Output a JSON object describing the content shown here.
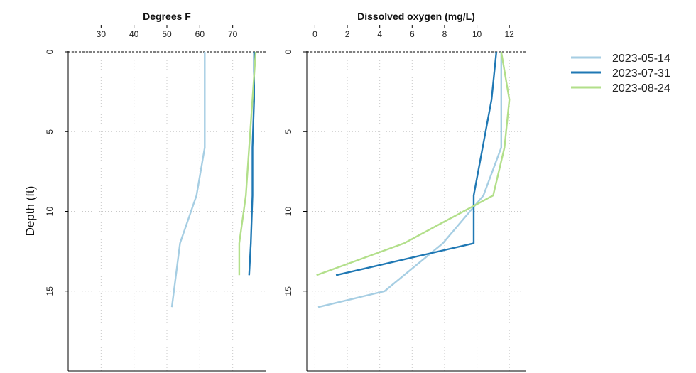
{
  "chart_data": {
    "type": "line",
    "ylabel": "Depth (ft)",
    "y_reversed": true,
    "ylim": [
      0,
      20
    ],
    "yticks": [
      0,
      5,
      10,
      15
    ],
    "grid": "dotted",
    "legend_position": "right",
    "series_colors": {
      "2023-05-14": "#a6cee3",
      "2023-07-31": "#1f78b4",
      "2023-08-24": "#b2df8a"
    },
    "legend": [
      "2023-05-14",
      "2023-07-31",
      "2023-08-24"
    ],
    "panels": [
      {
        "title": "Degrees F",
        "xlim": [
          20,
          80
        ],
        "xticks": [
          30,
          40,
          50,
          60,
          70
        ],
        "series": [
          {
            "name": "2023-05-14",
            "points": [
              [
                61.5,
                0
              ],
              [
                61.5,
                6
              ],
              [
                59,
                9
              ],
              [
                54,
                12
              ],
              [
                51.5,
                16
              ]
            ]
          },
          {
            "name": "2023-07-31",
            "points": [
              [
                76.5,
                0
              ],
              [
                76.5,
                3
              ],
              [
                76,
                6
              ],
              [
                76,
                9
              ],
              [
                75.5,
                12
              ],
              [
                75,
                14
              ]
            ]
          },
          {
            "name": "2023-08-24",
            "points": [
              [
                77,
                0
              ],
              [
                75,
                6
              ],
              [
                74,
                9
              ],
              [
                72,
                12
              ],
              [
                72,
                14
              ]
            ]
          }
        ]
      },
      {
        "title": "Dissolved oxygen (mg/L)",
        "xlim": [
          -0.5,
          13
        ],
        "xticks": [
          0,
          2,
          4,
          6,
          8,
          10,
          12
        ],
        "series": [
          {
            "name": "2023-05-14",
            "points": [
              [
                11.5,
                0
              ],
              [
                11.5,
                6
              ],
              [
                10.4,
                9
              ],
              [
                7.9,
                12
              ],
              [
                4.3,
                15
              ],
              [
                0.2,
                16
              ]
            ]
          },
          {
            "name": "2023-07-31",
            "points": [
              [
                11.2,
                0
              ],
              [
                10.9,
                3
              ],
              [
                9.8,
                9
              ],
              [
                9.8,
                12
              ],
              [
                1.3,
                14
              ]
            ]
          },
          {
            "name": "2023-08-24",
            "points": [
              [
                11.5,
                0
              ],
              [
                12,
                3
              ],
              [
                11.7,
                6
              ],
              [
                11,
                9
              ],
              [
                5.5,
                12
              ],
              [
                0.1,
                14
              ]
            ]
          }
        ]
      }
    ]
  }
}
